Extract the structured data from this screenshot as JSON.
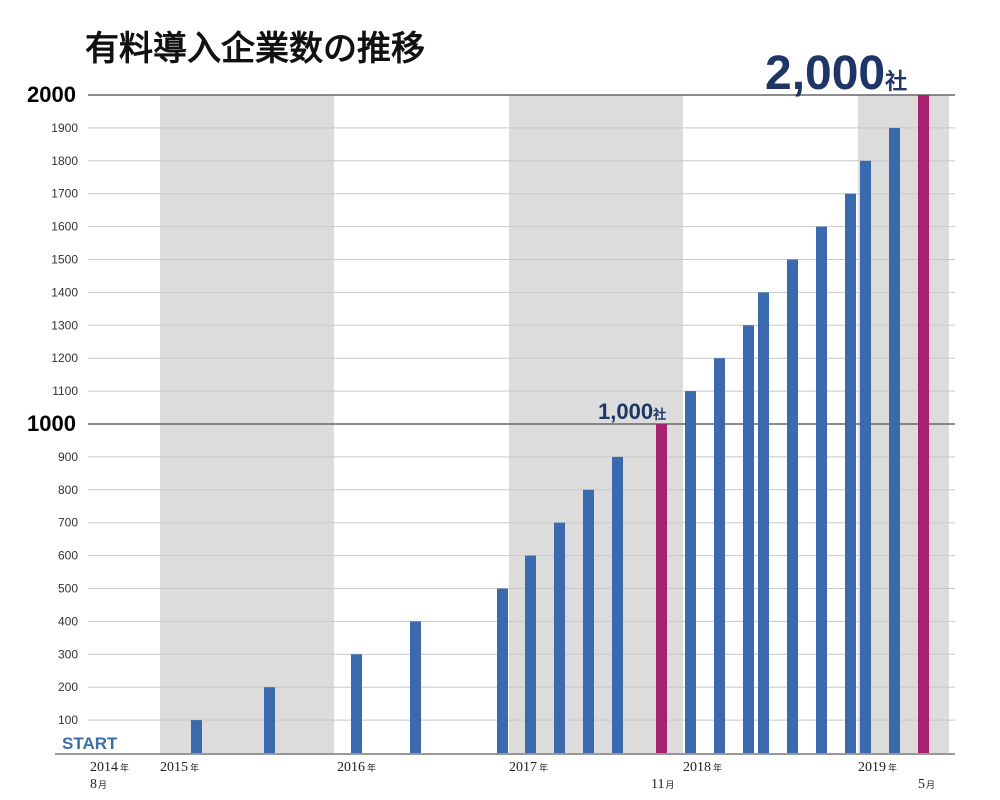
{
  "title": "有料導入企業数の推移",
  "start_label": "START",
  "colors": {
    "bar": "#3a6aad",
    "bar_highlight": "#a8216e",
    "band": "#dcdcdc",
    "grid_minor": "#c8c8c8",
    "grid_major": "#666666",
    "annotation": "#1f3566",
    "start": "#3a6ea5"
  },
  "annotations": [
    {
      "number": "1,000",
      "unit": "社",
      "value": 1000
    },
    {
      "number": "2,000",
      "unit": "社",
      "value": 2000
    }
  ],
  "x_labels": [
    {
      "year": "2014",
      "year_unit": "年",
      "month": "8",
      "month_unit": "月"
    },
    {
      "year": "2015",
      "year_unit": "年"
    },
    {
      "year": "2016",
      "year_unit": "年"
    },
    {
      "year": "2017",
      "year_unit": "年",
      "month": "11",
      "month_unit": "月"
    },
    {
      "year": "2018",
      "year_unit": "年"
    },
    {
      "year": "2019",
      "year_unit": "年",
      "month": "5",
      "month_unit": "月"
    }
  ],
  "chart_data": {
    "type": "bar",
    "title": "有料導入企業数の推移",
    "xlabel": "",
    "ylabel": "",
    "ylim": [
      0,
      2000
    ],
    "y_ticks": [
      100,
      200,
      300,
      400,
      500,
      600,
      700,
      800,
      900,
      1000,
      1100,
      1200,
      1300,
      1400,
      1500,
      1600,
      1700,
      1800,
      1900,
      2000
    ],
    "y_major_ticks": [
      1000,
      2000
    ],
    "grid": true,
    "shaded_year_bands": [
      "2015",
      "2017",
      "2019"
    ],
    "series": [
      {
        "values": [
          100,
          200,
          300,
          400,
          500,
          600,
          700,
          800,
          900,
          1000,
          1100,
          1200,
          1300,
          1400,
          1500,
          1600,
          1700,
          1800,
          1900,
          2000
        ],
        "highlighted": [
          1000,
          2000
        ]
      }
    ]
  }
}
